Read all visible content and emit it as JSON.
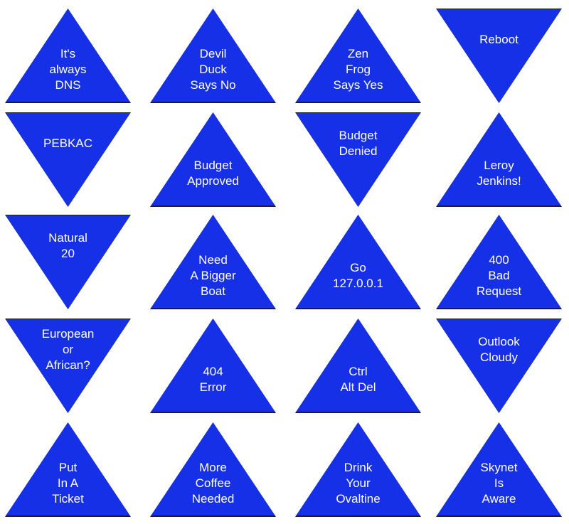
{
  "fill_color": "#1630e8",
  "triangles": [
    {
      "text": "It's\nalways\nDNS",
      "orientation": "up"
    },
    {
      "text": "Devil\nDuck\nSays No",
      "orientation": "up"
    },
    {
      "text": "Zen\nFrog\nSays Yes",
      "orientation": "up"
    },
    {
      "text": "Reboot",
      "orientation": "down"
    },
    {
      "text": "PEBKAC",
      "orientation": "down"
    },
    {
      "text": "Budget\nApproved",
      "orientation": "up"
    },
    {
      "text": "Budget\nDenied",
      "orientation": "down"
    },
    {
      "text": "Leroy\nJenkins!",
      "orientation": "up"
    },
    {
      "text": "Natural\n20",
      "orientation": "down"
    },
    {
      "text": "Need\nA Bigger\nBoat",
      "orientation": "up"
    },
    {
      "text": "Go\n127.0.0.1",
      "orientation": "up"
    },
    {
      "text": "400\nBad\nRequest",
      "orientation": "up"
    },
    {
      "text": "European\nor\nAfrican?",
      "orientation": "down"
    },
    {
      "text": "404\nError",
      "orientation": "up"
    },
    {
      "text": "Ctrl\nAlt Del",
      "orientation": "up"
    },
    {
      "text": "Outlook\nCloudy",
      "orientation": "down"
    },
    {
      "text": "Put\nIn A\nTicket",
      "orientation": "up"
    },
    {
      "text": "More\nCoffee\nNeeded",
      "orientation": "up"
    },
    {
      "text": "Drink\nYour\nOvaltine",
      "orientation": "up"
    },
    {
      "text": "Skynet\nIs\nAware",
      "orientation": "up"
    }
  ]
}
